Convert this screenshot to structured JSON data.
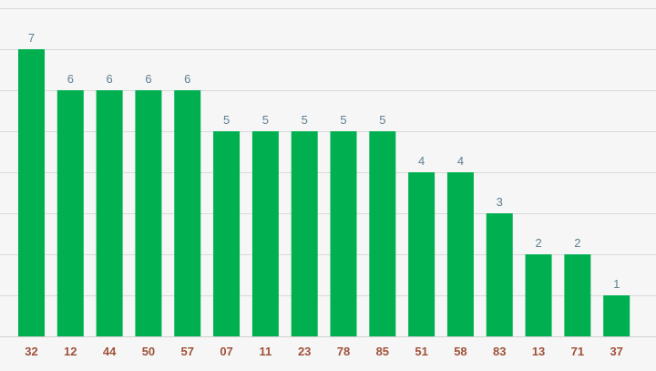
{
  "chart_data": {
    "type": "bar",
    "categories": [
      "32",
      "12",
      "44",
      "50",
      "57",
      "07",
      "11",
      "23",
      "78",
      "85",
      "51",
      "58",
      "83",
      "13",
      "71",
      "37"
    ],
    "values": [
      7,
      6,
      6,
      6,
      6,
      5,
      5,
      5,
      5,
      5,
      4,
      4,
      3,
      2,
      2,
      1
    ],
    "title": "",
    "xlabel": "",
    "ylabel": "",
    "ylim": [
      0,
      8
    ],
    "grid": true,
    "legend": "none",
    "colors": {
      "bar": "#00b050",
      "value_label": "#5f7f92",
      "tick_label": "#a0523a",
      "gridline": "#d9d9d9",
      "background": "#f6f6f6"
    }
  }
}
